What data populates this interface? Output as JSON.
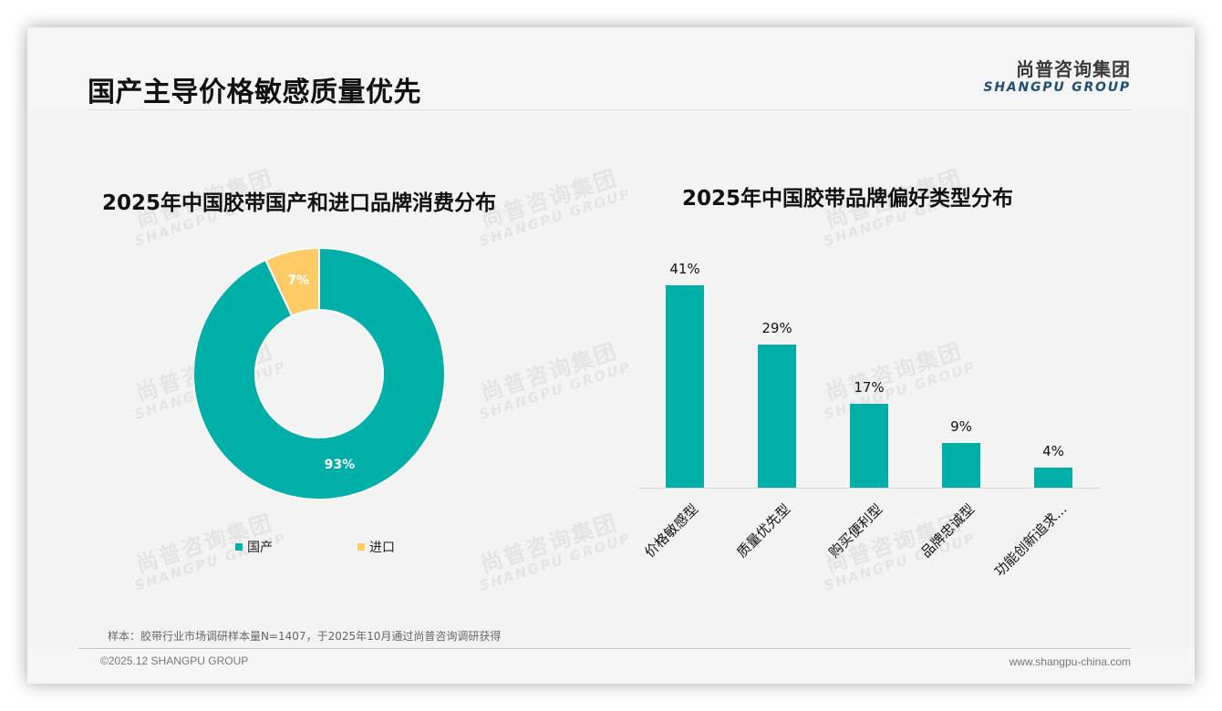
{
  "header": {
    "title": "国产主导价格敏感质量优先",
    "logo_cn": "尚普咨询集团",
    "logo_en": "SHANGPU GROUP"
  },
  "watermark": {
    "cn": "尚普咨询集团",
    "en": "SHANGPU GROUP"
  },
  "colors": {
    "teal": "#00b0a8",
    "yellow": "#ffcb67",
    "brand_blue": "#1f4e79"
  },
  "chart_data": [
    {
      "type": "pie",
      "subtype": "donut",
      "title": "2025年中国胶带国产和进口品牌消费分布",
      "categories": [
        "国产",
        "进口"
      ],
      "values": [
        93,
        7
      ],
      "labels": [
        "93%",
        "7%"
      ],
      "colors": [
        "#00b0a8",
        "#ffcb67"
      ],
      "legend_position": "bottom"
    },
    {
      "type": "bar",
      "title": "2025年中国胶带品牌偏好类型分布",
      "categories": [
        "价格敏感型",
        "质量优先型",
        "购买便利型",
        "品牌忠诚型",
        "功能创新追求..."
      ],
      "values": [
        41,
        29,
        17,
        9,
        4
      ],
      "labels": [
        "41%",
        "29%",
        "17%",
        "9%",
        "4%"
      ],
      "color": "#00b0a8",
      "xlabel": "",
      "ylabel": "",
      "grid": false,
      "ylim": [
        0,
        45
      ]
    }
  ],
  "footer": {
    "note": "样本：胶带行业市场调研样本量N=1407，于2025年10月通过尚普咨询调研获得",
    "copyright": "©2025.12 SHANGPU GROUP",
    "website": "www.shangpu-china.com"
  }
}
